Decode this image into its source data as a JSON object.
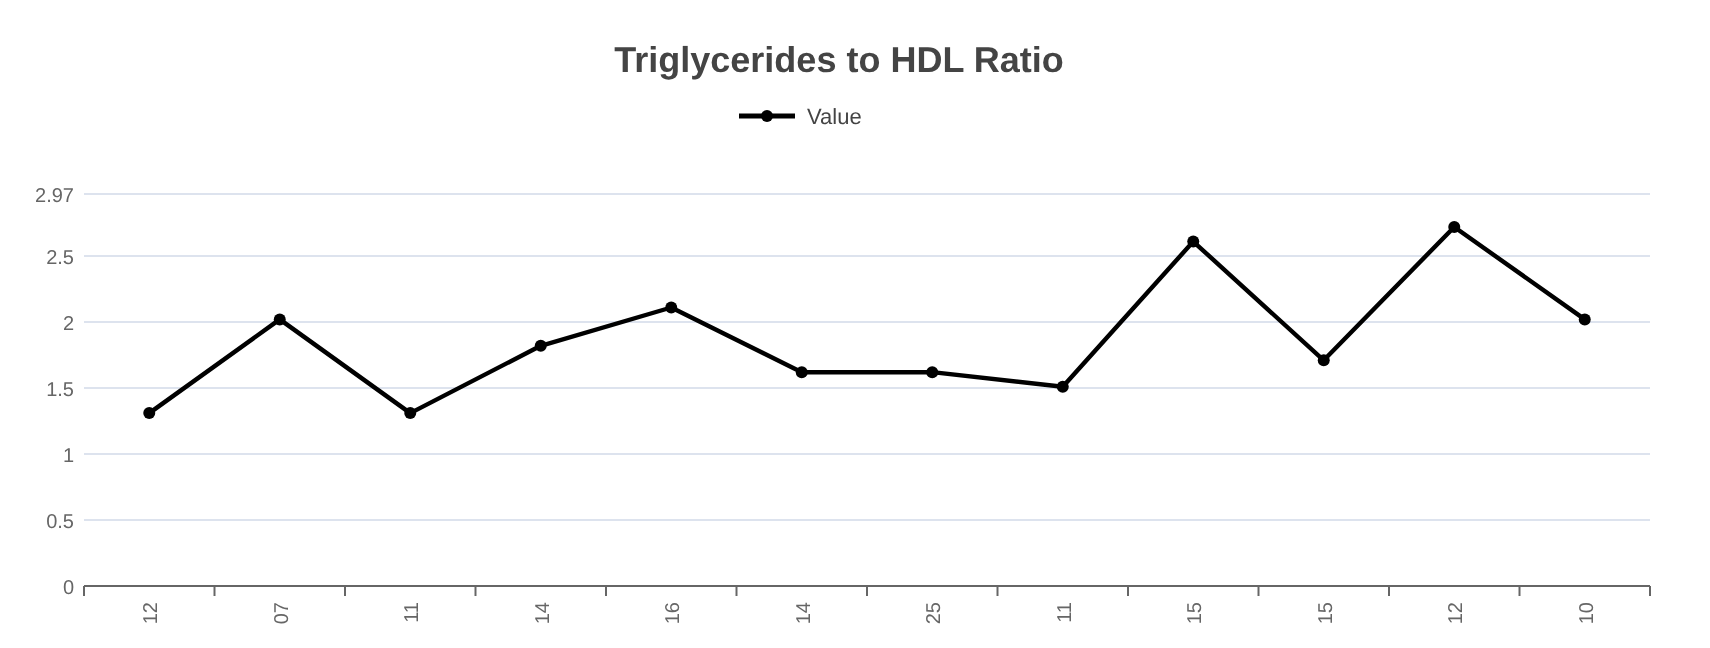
{
  "chart_data": {
    "type": "line",
    "title": "Triglycerides to HDL Ratio",
    "categories": [
      "12",
      "07",
      "11",
      "14",
      "16",
      "14",
      "25",
      "11",
      "15",
      "15",
      "12",
      "10"
    ],
    "series": [
      {
        "name": "Value",
        "color": "#000000",
        "values": [
          1.31,
          2.02,
          1.31,
          1.82,
          2.11,
          1.62,
          1.62,
          1.51,
          2.61,
          1.71,
          2.72,
          2.02
        ]
      }
    ],
    "ylim": [
      0,
      2.97
    ],
    "yticks": [
      0,
      0.5,
      1,
      1.5,
      2,
      2.5,
      2.97
    ],
    "grid": "y",
    "legend": "top",
    "marker": "circle",
    "line_style": "solid"
  }
}
